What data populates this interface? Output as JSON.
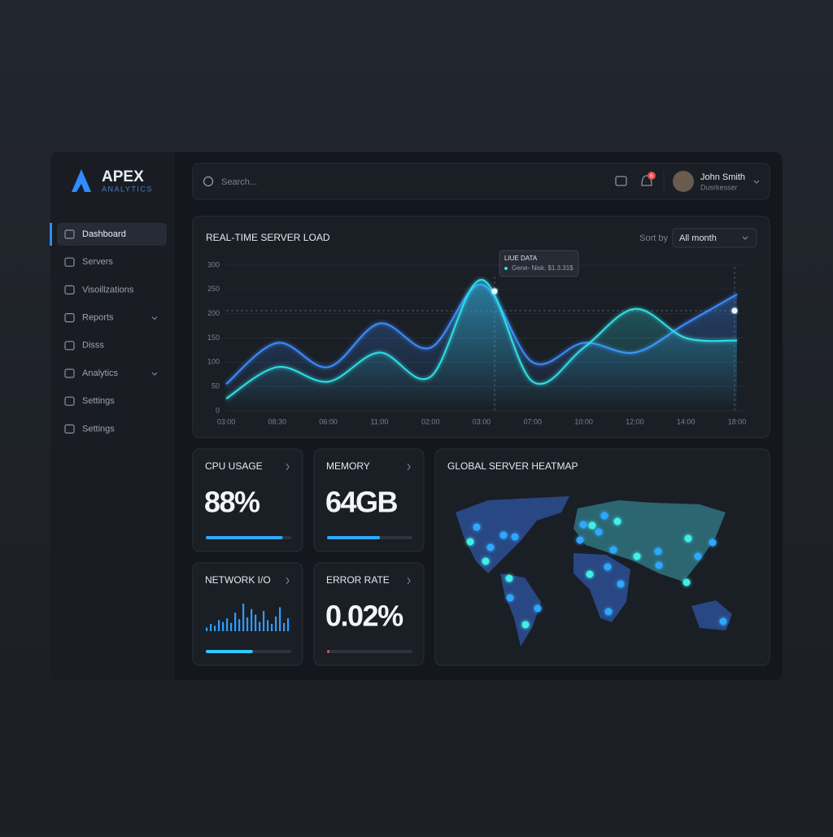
{
  "brand": {
    "name": "APEX",
    "tagline": "ANALYTICS"
  },
  "nav": [
    {
      "label": "Dashboard",
      "active": true
    },
    {
      "label": "Servers"
    },
    {
      "label": "Visoillzations"
    },
    {
      "label": "Reports",
      "expand": true
    },
    {
      "label": "Disss"
    },
    {
      "label": "Analytics",
      "expand": true
    },
    {
      "label": "Settings"
    },
    {
      "label": "Settings"
    }
  ],
  "header": {
    "search_placeholder": "Search...",
    "notifications": "6",
    "user": {
      "name": "John Smith",
      "role": "Dusrkesser"
    }
  },
  "load_card": {
    "title": "REAL-TIME SERVER LOAD",
    "sort_label": "Sort by",
    "sort_value": "All month",
    "tooltip": {
      "title": "LIUE DATA",
      "text": "Gene- Nisk. $1.3.31$"
    },
    "chart": {
      "type": "line",
      "categories": [
        "03:00",
        "08:30",
        "06:00",
        "11:00",
        "02:00",
        "03:00",
        "07:00",
        "10:00",
        "12:00",
        "14:00",
        "18:00"
      ],
      "series": [
        {
          "color": "#3b8cff",
          "values": [
            55,
            140,
            90,
            180,
            130,
            260,
            100,
            140,
            120,
            180,
            240
          ]
        },
        {
          "color": "#2fe0e8",
          "values": [
            25,
            90,
            60,
            120,
            70,
            270,
            60,
            130,
            210,
            150,
            145
          ]
        }
      ],
      "ylim": [
        0,
        300
      ],
      "yticks": [
        0,
        50,
        100,
        150,
        200,
        250,
        300
      ]
    }
  },
  "metrics": [
    {
      "title": "CPU USAGE",
      "value": "88%",
      "progress": 90,
      "color": "#2fa8ff"
    },
    {
      "title": "MEMORY",
      "value": "64GB",
      "progress": 62,
      "color": "#2fa8ff"
    },
    {
      "title": "NETWORK I/O",
      "bars": [
        4,
        8,
        6,
        12,
        10,
        14,
        9,
        20,
        13,
        30,
        15,
        24,
        18,
        10,
        22,
        12,
        8,
        16,
        26,
        9,
        14
      ],
      "progress": 55,
      "color": "#2fc8ff"
    },
    {
      "title": "ERROR RATE",
      "value": "0.02%",
      "progress": 3,
      "color": "#e5484d"
    }
  ],
  "heatmap": {
    "title": "GLOBAL SERVER HEATMAP"
  }
}
